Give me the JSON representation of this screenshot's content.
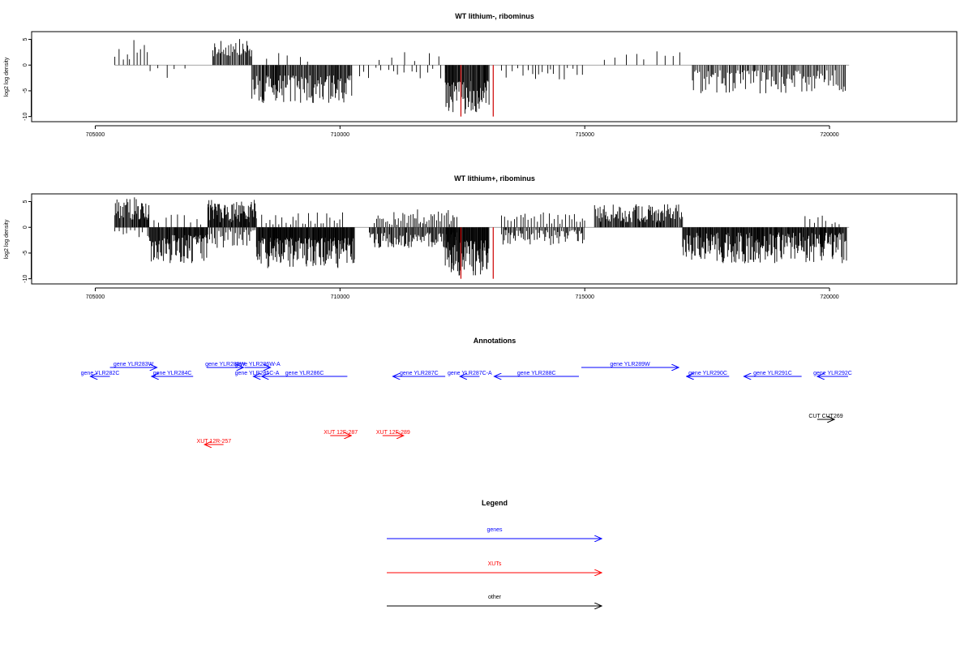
{
  "chart_data": [
    {
      "type": "bar",
      "title": "WT lithium-, ribominus",
      "ylabel": "log2 log density",
      "xlim": [
        703700,
        722600
      ],
      "ylim": [
        -11,
        6.5
      ],
      "x_ticks": [
        705000,
        710000,
        715000,
        720000
      ],
      "y_ticks": [
        5,
        0,
        -5,
        -10
      ],
      "signal_colors": {
        "main": "#000000",
        "highlight": "#cc0000"
      },
      "highlight_x": [
        712470,
        713130
      ],
      "segments": [
        {
          "x_start": 705400,
          "x_end": 706100,
          "sign": 1,
          "min": 1,
          "max": 5,
          "step": 65
        },
        {
          "x_start": 706120,
          "x_end": 706900,
          "sign": -1,
          "min": 0.5,
          "max": 3,
          "step": 160
        },
        {
          "x_start": 707400,
          "x_end": 708200,
          "sign": 1,
          "min": 1.5,
          "max": 5.3,
          "step": 22
        },
        {
          "x_start": 708200,
          "x_end": 710250,
          "sign": -1,
          "min": 2,
          "max": 7.5,
          "step": 18
        },
        {
          "x_start": 708500,
          "x_end": 709600,
          "sign": 1,
          "min": 0.5,
          "max": 3,
          "step": 230
        },
        {
          "x_start": 710400,
          "x_end": 712200,
          "sign": -1,
          "min": 0.5,
          "max": 3,
          "step": 120
        },
        {
          "x_start": 710800,
          "x_end": 712100,
          "sign": 1,
          "min": 0.5,
          "max": 2.5,
          "step": 260
        },
        {
          "x_start": 712150,
          "x_end": 713050,
          "sign": -1,
          "min": 3,
          "max": 9.5,
          "step": 15
        },
        {
          "x_start": 713300,
          "x_end": 715000,
          "sign": -1,
          "min": 0.5,
          "max": 3,
          "step": 90
        },
        {
          "x_start": 715400,
          "x_end": 717000,
          "sign": 1,
          "min": 1,
          "max": 2.7,
          "step": 210
        },
        {
          "x_start": 717200,
          "x_end": 720350,
          "sign": -1,
          "min": 1,
          "max": 5.5,
          "step": 28
        }
      ]
    },
    {
      "type": "bar",
      "title": "WT lithium+, ribominus",
      "ylabel": "log2 log density",
      "xlim": [
        703700,
        722600
      ],
      "ylim": [
        -11,
        6.5
      ],
      "x_ticks": [
        705000,
        710000,
        715000,
        720000
      ],
      "y_ticks": [
        5,
        0,
        -5,
        -10
      ],
      "signal_colors": {
        "main": "#000000",
        "highlight": "#cc0000"
      },
      "highlight_x": [
        712470,
        713130
      ],
      "segments": [
        {
          "x_start": 705400,
          "x_end": 706100,
          "sign": 1,
          "min": 1.5,
          "max": 6,
          "step": 16
        },
        {
          "x_start": 705400,
          "x_end": 706100,
          "sign": -1,
          "min": 0.5,
          "max": 2,
          "step": 80
        },
        {
          "x_start": 706100,
          "x_end": 707300,
          "sign": -1,
          "min": 1.5,
          "max": 7,
          "step": 14
        },
        {
          "x_start": 706200,
          "x_end": 707200,
          "sign": 1,
          "min": 0.5,
          "max": 2.5,
          "step": 120
        },
        {
          "x_start": 707300,
          "x_end": 708300,
          "sign": 1,
          "min": 1,
          "max": 5.5,
          "step": 14
        },
        {
          "x_start": 707300,
          "x_end": 708300,
          "sign": -1,
          "min": 0.5,
          "max": 4,
          "step": 30
        },
        {
          "x_start": 708300,
          "x_end": 710300,
          "sign": -1,
          "min": 2,
          "max": 8,
          "step": 12
        },
        {
          "x_start": 708400,
          "x_end": 710100,
          "sign": 1,
          "min": 0.5,
          "max": 3,
          "step": 70
        },
        {
          "x_start": 710700,
          "x_end": 712400,
          "sign": 1,
          "min": 0.5,
          "max": 3.5,
          "step": 40
        },
        {
          "x_start": 710600,
          "x_end": 712400,
          "sign": -1,
          "min": 1,
          "max": 4,
          "step": 20
        },
        {
          "x_start": 712150,
          "x_end": 713050,
          "sign": -1,
          "min": 2.5,
          "max": 9.5,
          "step": 12
        },
        {
          "x_start": 713300,
          "x_end": 715000,
          "sign": -1,
          "min": 0.5,
          "max": 3.5,
          "step": 24
        },
        {
          "x_start": 713300,
          "x_end": 715000,
          "sign": 1,
          "min": 0.5,
          "max": 3,
          "step": 60
        },
        {
          "x_start": 715200,
          "x_end": 717000,
          "sign": 1,
          "min": 1,
          "max": 4.5,
          "step": 18
        },
        {
          "x_start": 717000,
          "x_end": 720350,
          "sign": -1,
          "min": 1,
          "max": 7,
          "step": 14
        },
        {
          "x_start": 719500,
          "x_end": 720300,
          "sign": 1,
          "min": 0.5,
          "max": 2.5,
          "step": 100
        }
      ]
    }
  ],
  "annotations": {
    "title": "Annotations",
    "colors": {
      "genes": "#0000ff",
      "xuts": "#ff0000",
      "other": "#000000"
    },
    "features": [
      {
        "label": "gene YLR283W",
        "start": 705300,
        "end": 706260,
        "strand": "+",
        "kind": "genes",
        "row": 0
      },
      {
        "label": "gene YLR282C",
        "start": 704900,
        "end": 705300,
        "strand": "-",
        "kind": "genes",
        "row": 1
      },
      {
        "label": "gene YLR284C",
        "start": 706150,
        "end": 707000,
        "strand": "-",
        "kind": "genes",
        "row": 1
      },
      {
        "label": "gene YLR285W",
        "start": 707280,
        "end": 708030,
        "strand": "+",
        "kind": "genes",
        "row": 0
      },
      {
        "label": "gene YLR286W-A",
        "start": 708050,
        "end": 708580,
        "strand": "+",
        "kind": "genes",
        "row": 0
      },
      {
        "label": "gene YLR285C-A",
        "start": 708230,
        "end": 708380,
        "strand": "-",
        "kind": "genes",
        "row": 1
      },
      {
        "label": "gene YLR286C",
        "start": 708400,
        "end": 710150,
        "strand": "-",
        "kind": "genes",
        "row": 1
      },
      {
        "label": "gene YLR287C",
        "start": 711080,
        "end": 712150,
        "strand": "-",
        "kind": "genes",
        "row": 1
      },
      {
        "label": "gene YLR287C-A",
        "start": 712450,
        "end": 712850,
        "strand": "-",
        "kind": "genes",
        "row": 1
      },
      {
        "label": "gene YLR288C",
        "start": 713150,
        "end": 714880,
        "strand": "-",
        "kind": "genes",
        "row": 1
      },
      {
        "label": "gene YLR289W",
        "start": 714930,
        "end": 716920,
        "strand": "+",
        "kind": "genes",
        "row": 0
      },
      {
        "label": "gene YLR290C",
        "start": 717080,
        "end": 717950,
        "strand": "-",
        "kind": "genes",
        "row": 1
      },
      {
        "label": "gene YLR291C",
        "start": 718250,
        "end": 719430,
        "strand": "-",
        "kind": "genes",
        "row": 1
      },
      {
        "label": "gene YLR292C",
        "start": 719750,
        "end": 720380,
        "strand": "-",
        "kind": "genes",
        "row": 1
      },
      {
        "label": "CUT CUT269",
        "start": 719750,
        "end": 720100,
        "strand": "+",
        "kind": "other",
        "row": 2
      },
      {
        "label": "XUT 12F-287",
        "start": 709800,
        "end": 710230,
        "strand": "+",
        "kind": "xuts",
        "row": 3
      },
      {
        "label": "XUT 12F-289",
        "start": 710870,
        "end": 711300,
        "strand": "+",
        "kind": "xuts",
        "row": 3
      },
      {
        "label": "XUT 12R-257",
        "start": 707230,
        "end": 707620,
        "strand": "-",
        "kind": "xuts",
        "row": 4
      }
    ]
  },
  "legend": {
    "title": "Legend",
    "items": [
      {
        "label": "genes",
        "color": "#0000ff"
      },
      {
        "label": "XUTs",
        "color": "#ff0000"
      },
      {
        "label": "other",
        "color": "#000000"
      }
    ]
  }
}
